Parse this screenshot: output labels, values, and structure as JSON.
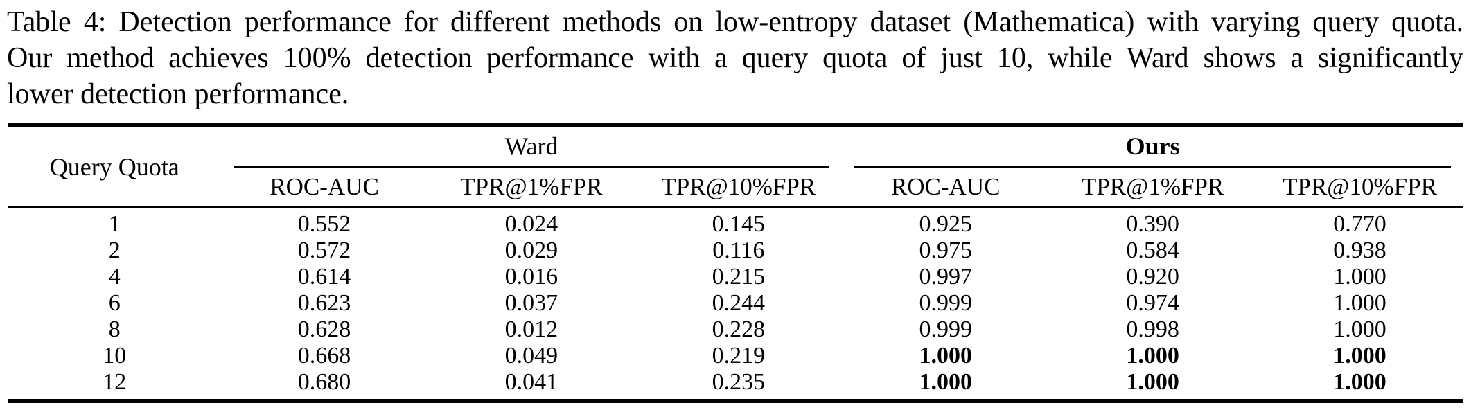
{
  "caption": {
    "lines": [
      "Table 4: Detection performance for different methods on low-entropy dataset (Mathematica) with varying query quota.",
      "Our method achieves 100% detection performance with a query quota of just 10, while Ward shows a significantly",
      "lower detection performance."
    ]
  },
  "table": {
    "row_header": "Query Quota",
    "groups": [
      {
        "label": "Ward",
        "bold": false
      },
      {
        "label": "Ours",
        "bold": true
      }
    ],
    "columns": [
      "ROC-AUC",
      "TPR@1%FPR",
      "TPR@10%FPR",
      "ROC-AUC",
      "TPR@1%FPR",
      "TPR@10%FPR"
    ],
    "rows": [
      {
        "quota": "1",
        "values": [
          "0.552",
          "0.024",
          "0.145",
          "0.925",
          "0.390",
          "0.770"
        ],
        "bold": []
      },
      {
        "quota": "2",
        "values": [
          "0.572",
          "0.029",
          "0.116",
          "0.975",
          "0.584",
          "0.938"
        ],
        "bold": []
      },
      {
        "quota": "4",
        "values": [
          "0.614",
          "0.016",
          "0.215",
          "0.997",
          "0.920",
          "1.000"
        ],
        "bold": []
      },
      {
        "quota": "6",
        "values": [
          "0.623",
          "0.037",
          "0.244",
          "0.999",
          "0.974",
          "1.000"
        ],
        "bold": []
      },
      {
        "quota": "8",
        "values": [
          "0.628",
          "0.012",
          "0.228",
          "0.999",
          "0.998",
          "1.000"
        ],
        "bold": []
      },
      {
        "quota": "10",
        "values": [
          "0.668",
          "0.049",
          "0.219",
          "1.000",
          "1.000",
          "1.000"
        ],
        "bold": [
          3,
          4,
          5
        ]
      },
      {
        "quota": "12",
        "values": [
          "0.680",
          "0.041",
          "0.235",
          "1.000",
          "1.000",
          "1.000"
        ],
        "bold": [
          3,
          4,
          5
        ]
      }
    ]
  },
  "colors": {
    "text": "#000000",
    "background": "#ffffff",
    "rule": "#000000"
  }
}
